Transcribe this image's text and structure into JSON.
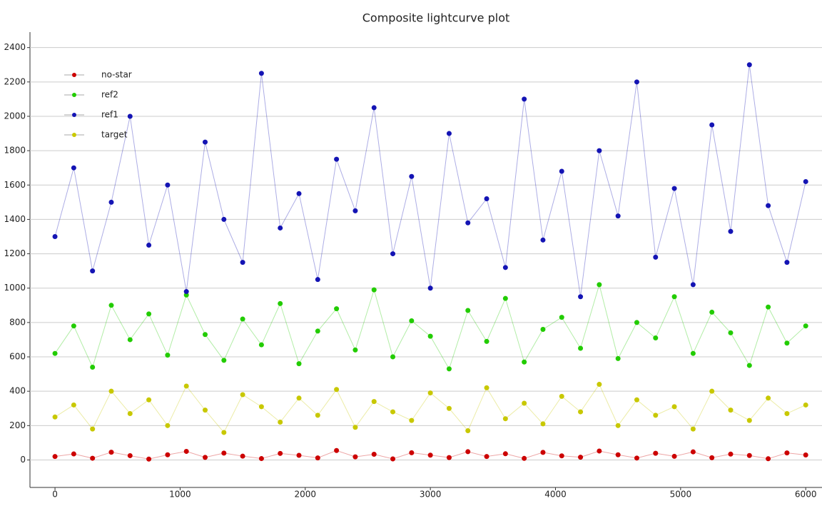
{
  "chart_data": {
    "type": "scatter",
    "title": "Composite lightcurve plot",
    "x": [
      0,
      150,
      300,
      450,
      600,
      750,
      900,
      1050,
      1200,
      1350,
      1500,
      1650,
      1800,
      1950,
      2100,
      2250,
      2400,
      2550,
      2700,
      2850,
      3000,
      3150,
      3300,
      3450,
      3600,
      3750,
      3900,
      4050,
      4200,
      4350,
      4500,
      4650,
      4800,
      4950,
      5100,
      5250,
      5400,
      5550,
      5700,
      5850,
      6000
    ],
    "series": [
      {
        "name": "no-star",
        "color": "#cc0000",
        "values": [
          20,
          35,
          10,
          45,
          25,
          5,
          30,
          50,
          15,
          40,
          22,
          8,
          38,
          27,
          12,
          55,
          18,
          33,
          6,
          42,
          28,
          14,
          48,
          20,
          36,
          9,
          44,
          24,
          16,
          52,
          30,
          11,
          39,
          21,
          47,
          13,
          34,
          26,
          7,
          41,
          29
        ]
      },
      {
        "name": "ref2",
        "color": "#22cc00",
        "values": [
          620,
          780,
          540,
          900,
          700,
          850,
          610,
          960,
          730,
          580,
          820,
          670,
          910,
          560,
          750,
          880,
          640,
          990,
          600,
          810,
          720,
          530,
          870,
          690,
          940,
          570,
          760,
          830,
          650,
          1020,
          590,
          800,
          710,
          950,
          620,
          860,
          740,
          550,
          890,
          680,
          780
        ]
      },
      {
        "name": "ref1",
        "color": "#1414b4",
        "values": [
          1300,
          1700,
          1100,
          1500,
          2000,
          1250,
          1600,
          980,
          1850,
          1400,
          1150,
          2250,
          1350,
          1550,
          1050,
          1750,
          1450,
          2050,
          1200,
          1650,
          1000,
          1900,
          1380,
          1520,
          1120,
          2100,
          1280,
          1680,
          950,
          1800,
          1420,
          2200,
          1180,
          1580,
          1020,
          1950,
          1330,
          2300,
          1480,
          1150,
          1620
        ]
      },
      {
        "name": "target",
        "color": "#c8c800",
        "values": [
          250,
          320,
          180,
          400,
          270,
          350,
          200,
          430,
          290,
          160,
          380,
          310,
          220,
          360,
          260,
          410,
          190,
          340,
          280,
          230,
          390,
          300,
          170,
          420,
          240,
          330,
          210,
          370,
          280,
          440,
          200,
          350,
          260,
          310,
          180,
          400,
          290,
          230,
          360,
          270,
          320
        ]
      }
    ],
    "xlim": [
      -200,
      6130
    ],
    "ylim": [
      -160,
      2490
    ],
    "xticks": [
      0,
      1000,
      2000,
      3000,
      4000,
      5000,
      6000
    ],
    "yticks": [
      0,
      200,
      400,
      600,
      800,
      1000,
      1200,
      1400,
      1600,
      1800,
      2000,
      2200,
      2400
    ],
    "grid": true,
    "legend": "upper left"
  }
}
